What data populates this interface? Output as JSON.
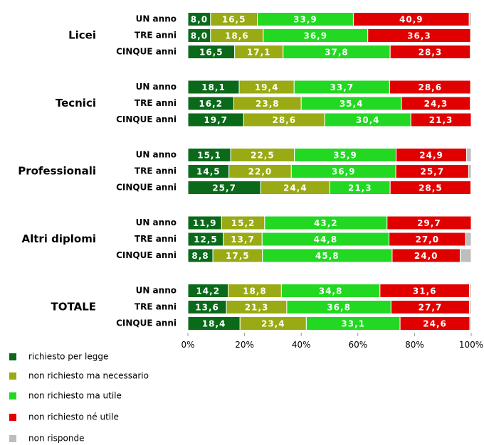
{
  "chart_data": {
    "type": "stacked-bar-horizontal",
    "groups": [
      "Licei",
      "Tecnici",
      "Professionali",
      "Altri diplomi",
      "TOTALE"
    ],
    "categories": [
      "UN anno",
      "TRE anni",
      "CINQUE anni",
      "UN anno",
      "TRE anni",
      "CINQUE anni",
      "UN anno",
      "TRE anni",
      "CINQUE anni",
      "UN anno",
      "TRE anni",
      "CINQUE anni",
      "UN anno",
      "TRE anni",
      "CINQUE anni"
    ],
    "series": [
      {
        "name": "richiesto per legge",
        "color": "#0a6a1a",
        "values": [
          8.0,
          8.0,
          16.5,
          18.1,
          16.2,
          19.7,
          15.1,
          14.5,
          25.7,
          11.9,
          12.5,
          8.8,
          14.2,
          13.6,
          18.4
        ],
        "value_labels": [
          "8,0",
          "8,0",
          "16,5",
          "18,1",
          "16,2",
          "19,7",
          "15,1",
          "14,5",
          "25,7",
          "11,9",
          "12,5",
          "8,8",
          "14,2",
          "13,6",
          "18,4"
        ]
      },
      {
        "name": "non richiesto ma necessario",
        "color": "#9aaa14",
        "values": [
          16.5,
          18.6,
          17.1,
          19.4,
          23.8,
          28.6,
          22.5,
          22.0,
          24.4,
          15.2,
          13.7,
          17.5,
          18.8,
          21.3,
          23.4
        ],
        "value_labels": [
          "16,5",
          "18,6",
          "17,1",
          "19,4",
          "23,8",
          "28,6",
          "22,5",
          "22,0",
          "24,4",
          "15,2",
          "13,7",
          "17,5",
          "18,8",
          "21,3",
          "23,4"
        ]
      },
      {
        "name": "non richiesto ma utile",
        "color": "#22d822",
        "values": [
          33.9,
          36.9,
          37.8,
          33.7,
          35.4,
          30.4,
          35.9,
          36.9,
          21.3,
          43.2,
          44.8,
          45.8,
          34.8,
          36.8,
          33.1
        ],
        "value_labels": [
          "33,9",
          "36,9",
          "37,8",
          "33,7",
          "35,4",
          "30,4",
          "35,9",
          "36,9",
          "21,3",
          "43,2",
          "44,8",
          "45,8",
          "34,8",
          "36,8",
          "33,1"
        ]
      },
      {
        "name": "non richiesto né utile",
        "color": "#e00000",
        "values": [
          40.9,
          36.3,
          28.3,
          28.6,
          24.3,
          21.3,
          24.9,
          25.7,
          28.5,
          29.7,
          27.0,
          24.0,
          31.6,
          27.7,
          24.6
        ],
        "value_labels": [
          "40,9",
          "36,3",
          "28,3",
          "28,6",
          "24,3",
          "21,3",
          "24,9",
          "25,7",
          "28,5",
          "29,7",
          "27,0",
          "24,0",
          "31,6",
          "27,7",
          "24,6"
        ]
      },
      {
        "name": "non risponde",
        "color": "#bdbdbd",
        "values": [
          0.7,
          0.2,
          0.3,
          0.2,
          0.3,
          0.0,
          1.6,
          0.9,
          0.1,
          0.0,
          2.0,
          3.9,
          0.6,
          0.6,
          0.5
        ]
      }
    ],
    "xlim": [
      0,
      100
    ],
    "xticks": [
      {
        "value": 0,
        "label": "0%"
      },
      {
        "value": 20,
        "label": "20%"
      },
      {
        "value": 40,
        "label": "40%"
      },
      {
        "value": 60,
        "label": "60%"
      },
      {
        "value": 80,
        "label": "80%"
      },
      {
        "value": 100,
        "label": "100%"
      }
    ]
  }
}
